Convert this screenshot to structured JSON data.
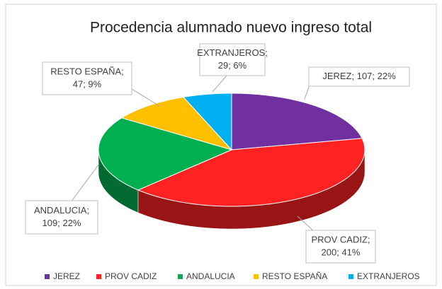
{
  "chart_data": {
    "type": "pie3d",
    "title": "Procedencia alumnado nuevo ingreso total",
    "categories": [
      "JEREZ",
      "PROV CADIZ",
      "ANDALUCIA",
      "RESTO ESPAÑA",
      "EXTRANJEROS"
    ],
    "values": [
      107,
      200,
      109,
      47,
      29
    ],
    "value_labels": [
      [
        "JEREZ; 107; 22%"
      ],
      [
        "PROV CADIZ;",
        "200; 41%"
      ],
      [
        "ANDALUCIA;",
        "109; 22%"
      ],
      [
        "RESTO ESPAÑA;",
        "47; 9%"
      ],
      [
        "EXTRANJEROS;",
        "29; 6%"
      ]
    ],
    "colors": [
      "#7030a0",
      "#ff2222",
      "#00b050",
      "#ffc000",
      "#00b0f0"
    ],
    "legend": "bottom"
  }
}
